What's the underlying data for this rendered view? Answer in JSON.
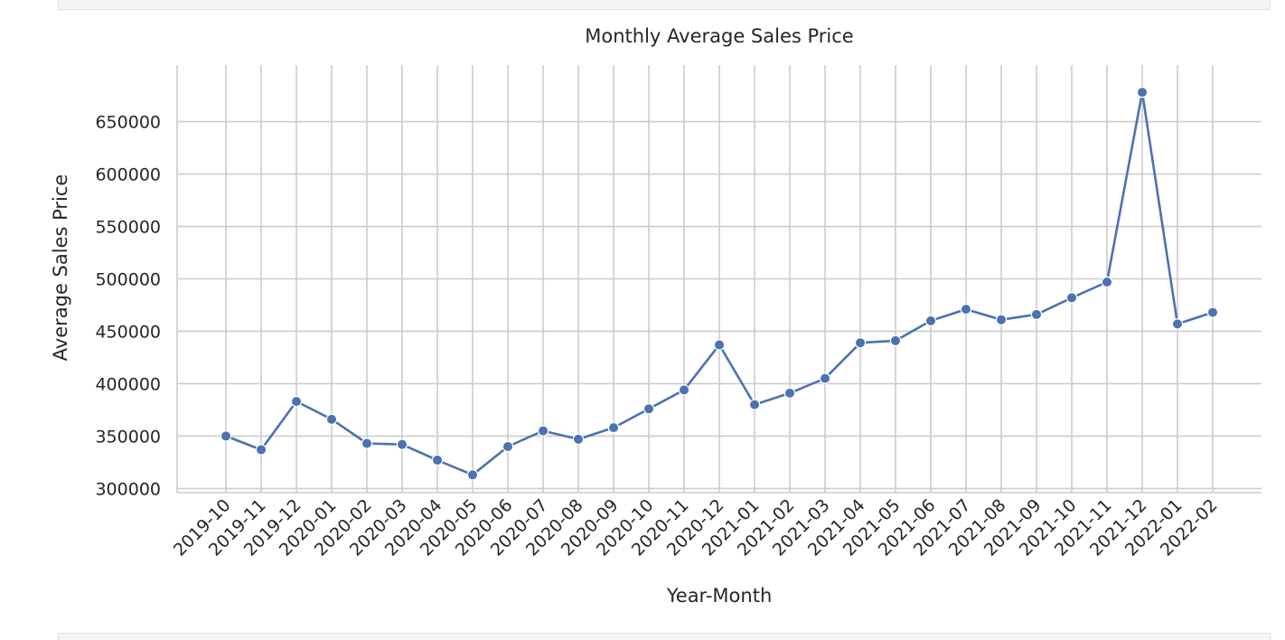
{
  "chart_data": {
    "type": "line",
    "title": "Monthly Average Sales Price",
    "xlabel": "Year-Month",
    "ylabel": "Average Sales Price",
    "categories": [
      "2019-10",
      "2019-11",
      "2019-12",
      "2020-01",
      "2020-02",
      "2020-03",
      "2020-04",
      "2020-05",
      "2020-06",
      "2020-07",
      "2020-08",
      "2020-09",
      "2020-10",
      "2020-11",
      "2020-12",
      "2021-01",
      "2021-02",
      "2021-03",
      "2021-04",
      "2021-05",
      "2021-06",
      "2021-07",
      "2021-08",
      "2021-09",
      "2021-10",
      "2021-11",
      "2021-12",
      "2022-01",
      "2022-02"
    ],
    "values": [
      350000,
      337000,
      383000,
      366000,
      343000,
      342000,
      327000,
      313000,
      340000,
      355000,
      347000,
      358000,
      376000,
      394000,
      437000,
      380000,
      391000,
      405000,
      439000,
      441000,
      460000,
      471000,
      461000,
      466000,
      482000,
      497000,
      678000,
      457000,
      468000
    ],
    "ylim": [
      296000,
      704000
    ],
    "yticks": [
      300000,
      350000,
      400000,
      450000,
      500000,
      550000,
      600000,
      650000
    ],
    "grid": true,
    "legend": "none",
    "colors": {
      "line": "#4c72b0",
      "grid": "#cccccc",
      "axis": "#cccccc",
      "text": "#262626"
    }
  }
}
